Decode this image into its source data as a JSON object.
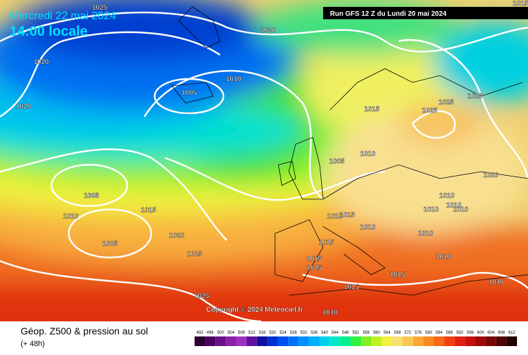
{
  "header": {
    "date": "Mercredi 22 mai 2024",
    "time": "14:00 locale",
    "run": "Run GFS 12 Z du Lundi 20 mai 2024"
  },
  "copyright": "Copyright © 2024 Meteociel.fr",
  "caption": {
    "title": "Géop. Z500 & pression au sol",
    "lead": "(+ 48h)"
  },
  "isobar_labels": [
    "1025",
    "1020",
    "1020",
    "1010",
    "1005",
    "1020",
    "1015",
    "1025",
    "1025",
    "1025",
    "1010",
    "1005",
    "1020",
    "1005",
    "1010",
    "1015",
    "1010",
    "1010",
    "1010",
    "1010",
    "1015",
    "1010",
    "1010",
    "1020",
    "1005",
    "1015",
    "1010",
    "1025",
    "1015",
    "1015",
    "1010",
    "1015",
    "1010",
    "1015",
    "1025",
    "1010",
    "1015"
  ],
  "legend": {
    "labels": [
      492,
      496,
      500,
      504,
      508,
      512,
      516,
      520,
      524,
      528,
      532,
      536,
      540,
      544,
      548,
      552,
      556,
      560,
      564,
      568,
      572,
      576,
      580,
      584,
      588,
      592,
      596,
      600,
      604,
      608,
      612
    ],
    "colors": [
      "#2a0030",
      "#4a0060",
      "#6a108a",
      "#8a20a8",
      "#a030c0",
      "#6010a0",
      "#1010a0",
      "#0030d0",
      "#0050f0",
      "#0070ff",
      "#0090ff",
      "#00b0ff",
      "#00d0f0",
      "#00e8c8",
      "#00f090",
      "#30f040",
      "#80f020",
      "#c0f020",
      "#f0f040",
      "#f8e070",
      "#f8c850",
      "#f8a830",
      "#f88820",
      "#f86818",
      "#f04010",
      "#e02010",
      "#c81010",
      "#a00808",
      "#780404",
      "#500202",
      "#200000"
    ]
  }
}
